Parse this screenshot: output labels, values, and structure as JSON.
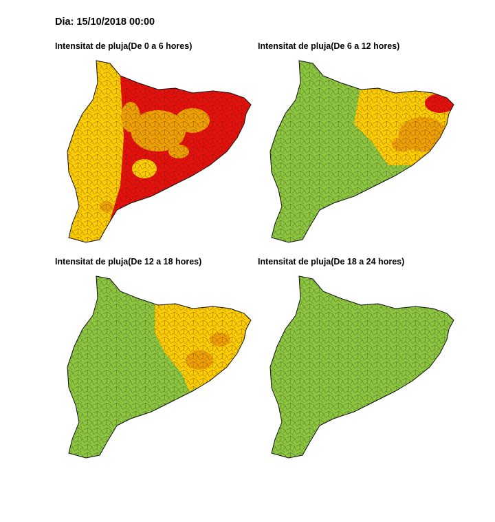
{
  "title": "Dia: 15/10/2018 00:00",
  "panels": [
    {
      "title": "Intensitat de pluja(De 0 a 6 hores)"
    },
    {
      "title": "Intensitat de pluja(De 6 a 12 hores)"
    },
    {
      "title": "Intensitat de pluja(De 12 a 18 hores)"
    },
    {
      "title": "Intensitat de pluja(De 18 a 24 hores)"
    }
  ]
}
